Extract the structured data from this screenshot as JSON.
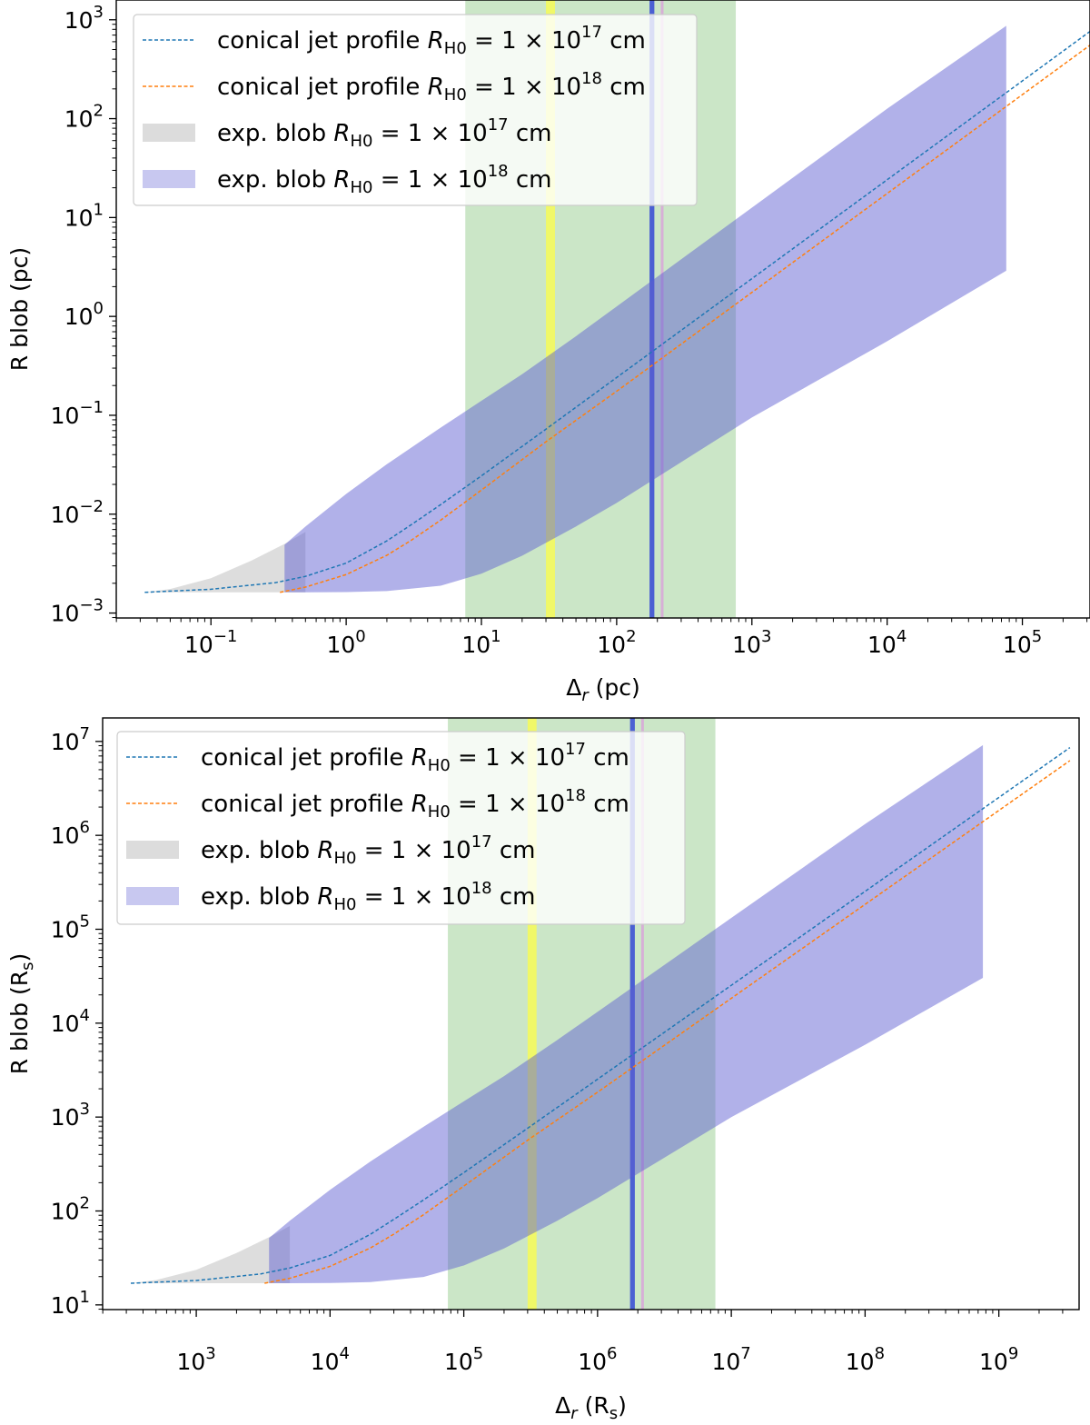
{
  "colors": {
    "blue_line": "#1f77b4",
    "orange_line": "#ff7f0e",
    "gray_fill": "#d3d3d3",
    "purple_fill": "#8484d8",
    "green_band": "#a8d5a2",
    "yellow_band": "#ffff40",
    "blue_vline": "#2a3fd6",
    "pink_vline": "#d8a8d8"
  },
  "chart_data": [
    {
      "type": "area",
      "id": "top",
      "xlabel": "Δr (pc)",
      "xlabel_main": "Δ",
      "xlabel_sub": "r",
      "xlabel_unit": " (pc)",
      "ylabel": "R blob (pc)",
      "xscale": "log",
      "yscale": "log",
      "xlim_exp": [
        -1.7,
        5.5
      ],
      "ylim_exp": [
        -3.05,
        3.2
      ],
      "xticks": [
        {
          "exp": -1,
          "label": "10",
          "sup": "−1"
        },
        {
          "exp": 0,
          "label": "10",
          "sup": "0"
        },
        {
          "exp": 1,
          "label": "10",
          "sup": "1"
        },
        {
          "exp": 2,
          "label": "10",
          "sup": "2"
        },
        {
          "exp": 3,
          "label": "10",
          "sup": "3"
        },
        {
          "exp": 4,
          "label": "10",
          "sup": "4"
        },
        {
          "exp": 5,
          "label": "10",
          "sup": "5"
        }
      ],
      "yticks": [
        {
          "exp": -3,
          "label": "10",
          "sup": "−3"
        },
        {
          "exp": -2,
          "label": "10",
          "sup": "−2"
        },
        {
          "exp": -1,
          "label": "10",
          "sup": "−1"
        },
        {
          "exp": 0,
          "label": "10",
          "sup": "0"
        },
        {
          "exp": 1,
          "label": "10",
          "sup": "1"
        },
        {
          "exp": 2,
          "label": "10",
          "sup": "2"
        },
        {
          "exp": 3,
          "label": "10",
          "sup": "3"
        }
      ],
      "bands": [
        {
          "name": "green-band",
          "x0": 7.6,
          "x1": 760,
          "color": "#a8d5a2",
          "opacity": 0.6
        },
        {
          "name": "yellow-band",
          "x0": 30,
          "x1": 35,
          "color": "#ffff40",
          "opacity": 0.7
        },
        {
          "name": "blue-line-band",
          "x0": 175,
          "x1": 190,
          "color": "#2a3fd6",
          "opacity": 0.8
        },
        {
          "name": "pink-line-band",
          "x0": 212,
          "x1": 222,
          "color": "#d8a8d8",
          "opacity": 0.9
        }
      ],
      "series": [
        {
          "name": "conical-jet-profile-1e17",
          "kind": "line",
          "x": [
            0.0324,
            0.1,
            0.3,
            0.5,
            1,
            2,
            3,
            5,
            10,
            30,
            100,
            1000,
            10000,
            100000,
            340000
          ],
          "y": [
            0.00162,
            0.00174,
            0.00203,
            0.00235,
            0.0032,
            0.00537,
            0.00775,
            0.0125,
            0.0244,
            0.0724,
            0.241,
            2.41,
            24.1,
            241,
            820
          ]
        },
        {
          "name": "conical-jet-profile-1e18",
          "kind": "line",
          "x": [
            0.324,
            0.5,
            1,
            2,
            3,
            5,
            10,
            30,
            100,
            1000,
            10000,
            100000,
            340000
          ],
          "y": [
            0.00162,
            0.00183,
            0.00245,
            0.00384,
            0.0054,
            0.0087,
            0.0175,
            0.054,
            0.175,
            1.75,
            17.5,
            175,
            595
          ]
        },
        {
          "name": "exp-blob-1e17",
          "kind": "band",
          "x": [
            0.0324,
            0.05,
            0.1,
            0.2,
            0.35,
            0.5
          ],
          "upper": [
            0.00162,
            0.00175,
            0.00225,
            0.0034,
            0.005,
            0.0066
          ],
          "lower": [
            0.00162,
            0.00162,
            0.00162,
            0.00162,
            0.00162,
            0.00162
          ]
        },
        {
          "name": "exp-blob-1e18",
          "kind": "band",
          "x": [
            0.35,
            0.5,
            1,
            2,
            5,
            10,
            20,
            50,
            100,
            1000,
            10000,
            76000
          ],
          "upper": [
            0.0049,
            0.0075,
            0.016,
            0.032,
            0.075,
            0.14,
            0.26,
            0.63,
            1.26,
            12.6,
            126,
            870
          ],
          "lower": [
            0.00162,
            0.00162,
            0.00163,
            0.00167,
            0.00189,
            0.0025,
            0.0038,
            0.0075,
            0.013,
            0.095,
            0.56,
            2.9
          ]
        }
      ],
      "legend": {
        "placement": "upper-left",
        "entries": [
          {
            "label": "conical jet profile ",
            "math": "R",
            "sub": "H0",
            "eq": " = 1 × 10",
            "sup": "17",
            "unit": " cm",
            "kind": "line",
            "color": "#1f77b4"
          },
          {
            "label": "conical jet profile ",
            "math": "R",
            "sub": "H0",
            "eq": " = 1 × 10",
            "sup": "18",
            "unit": " cm",
            "kind": "line",
            "color": "#ff7f0e"
          },
          {
            "label": "exp. blob ",
            "math": "R",
            "sub": "H0",
            "eq": " = 1 × 10",
            "sup": "17",
            "unit": " cm",
            "kind": "patch",
            "color": "#dcdcdc"
          },
          {
            "label": "exp. blob ",
            "math": "R",
            "sub": "H0",
            "eq": " = 1 × 10",
            "sup": "18",
            "unit": " cm",
            "kind": "patch",
            "color": "#c8c8f0"
          }
        ]
      }
    },
    {
      "type": "area",
      "id": "bottom",
      "xlabel": "Δr (Rs)",
      "xlabel_main": "Δ",
      "xlabel_sub": "r",
      "xlabel_unit": " (R",
      "xlabel_unit_sub": "s",
      "xlabel_unit_end": ")",
      "ylabel": "R blob (Rs)",
      "xscale": "log",
      "yscale": "log",
      "xlim_exp": [
        2.3,
        9.6
      ],
      "ylim_exp": [
        0.95,
        7.25
      ],
      "xticks": [
        {
          "exp": 3,
          "label": "10",
          "sup": "3"
        },
        {
          "exp": 4,
          "label": "10",
          "sup": "4"
        },
        {
          "exp": 5,
          "label": "10",
          "sup": "5"
        },
        {
          "exp": 6,
          "label": "10",
          "sup": "6"
        },
        {
          "exp": 7,
          "label": "10",
          "sup": "7"
        },
        {
          "exp": 8,
          "label": "10",
          "sup": "8"
        },
        {
          "exp": 9,
          "label": "10",
          "sup": "9"
        }
      ],
      "yticks": [
        {
          "exp": 1,
          "label": "10",
          "sup": "1"
        },
        {
          "exp": 2,
          "label": "10",
          "sup": "2"
        },
        {
          "exp": 3,
          "label": "10",
          "sup": "3"
        },
        {
          "exp": 4,
          "label": "10",
          "sup": "4"
        },
        {
          "exp": 5,
          "label": "10",
          "sup": "5"
        },
        {
          "exp": 6,
          "label": "10",
          "sup": "6"
        },
        {
          "exp": 7,
          "label": "10",
          "sup": "7"
        }
      ],
      "bands": [
        {
          "name": "green-band",
          "x0": 76000,
          "x1": 7600000,
          "color": "#a8d5a2",
          "opacity": 0.6
        },
        {
          "name": "yellow-band",
          "x0": 300000,
          "x1": 350000,
          "color": "#ffff40",
          "opacity": 0.7
        },
        {
          "name": "blue-line-band",
          "x0": 1750000,
          "x1": 1900000,
          "color": "#2a3fd6",
          "opacity": 0.8
        },
        {
          "name": "pink-line-band",
          "x0": 2120000,
          "x1": 2220000,
          "color": "#d8a8d8",
          "opacity": 0.9
        }
      ],
      "series": [
        {
          "name": "conical-jet-profile-1e17",
          "kind": "line",
          "x": [
            324,
            1000,
            3000,
            5000,
            10000,
            20000,
            30000,
            50000,
            100000,
            300000,
            1000000,
            10000000,
            100000000,
            1000000000,
            3400000000
          ],
          "y": [
            17.0,
            18.2,
            21.3,
            24.7,
            33.6,
            56.4,
            81.4,
            131,
            256,
            760,
            2530,
            25300,
            253000,
            2530000,
            8600000
          ]
        },
        {
          "name": "conical-jet-profile-1e18",
          "kind": "line",
          "x": [
            3240,
            5000,
            10000,
            20000,
            30000,
            50000,
            100000,
            300000,
            1000000,
            10000000,
            100000000,
            1000000000,
            3400000000
          ],
          "y": [
            17.0,
            19.2,
            25.7,
            40.3,
            56.7,
            91.3,
            184,
            567,
            1840,
            18400,
            184000,
            1840000,
            6250000
          ]
        },
        {
          "name": "exp-blob-1e17",
          "kind": "band",
          "x": [
            324,
            500,
            1000,
            2000,
            3500,
            5000
          ],
          "upper": [
            17.0,
            18.4,
            23.6,
            35.7,
            52.5,
            69.3
          ],
          "lower": [
            17.0,
            17.0,
            17.0,
            17.0,
            17.0,
            17.0
          ]
        },
        {
          "name": "exp-blob-1e18",
          "kind": "band",
          "x": [
            3500,
            5000,
            10000,
            20000,
            50000,
            100000,
            200000,
            500000,
            1000000,
            10000000,
            100000000,
            760000000
          ],
          "upper": [
            51.5,
            78.8,
            168,
            336,
            788,
            1470,
            2730,
            6620,
            13200,
            132000,
            1320000,
            9130000
          ],
          "lower": [
            17.0,
            17.0,
            17.1,
            17.5,
            19.8,
            26.3,
            39.9,
            78.8,
            137,
            998,
            5880,
            30400
          ]
        }
      ],
      "legend": {
        "placement": "upper-left",
        "entries": [
          {
            "label": "conical jet profile ",
            "math": "R",
            "sub": "H0",
            "eq": " = 1 × 10",
            "sup": "17",
            "unit": " cm",
            "kind": "line",
            "color": "#1f77b4"
          },
          {
            "label": "conical jet profile ",
            "math": "R",
            "sub": "H0",
            "eq": " = 1 × 10",
            "sup": "18",
            "unit": " cm",
            "kind": "line",
            "color": "#ff7f0e"
          },
          {
            "label": "exp. blob ",
            "math": "R",
            "sub": "H0",
            "eq": " = 1 × 10",
            "sup": "17",
            "unit": " cm",
            "kind": "patch",
            "color": "#dcdcdc"
          },
          {
            "label": "exp. blob ",
            "math": "R",
            "sub": "H0",
            "eq": " = 1 × 10",
            "sup": "18",
            "unit": " cm",
            "kind": "patch",
            "color": "#c8c8f0"
          }
        ]
      }
    }
  ]
}
